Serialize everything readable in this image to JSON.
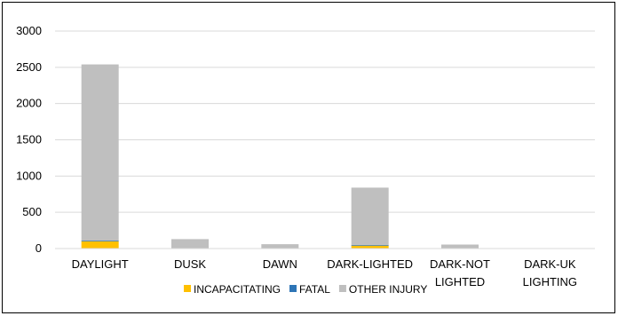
{
  "chart_data": {
    "type": "bar",
    "stacked": true,
    "categories": [
      "DAYLIGHT",
      "DUSK",
      "DAWN",
      "DARK-LIGHTED",
      "DARK-NOT LIGHTED",
      "DARK-UK LIGHTING"
    ],
    "category_label_lines": [
      [
        "DAYLIGHT"
      ],
      [
        "DUSK"
      ],
      [
        "DAWN"
      ],
      [
        "DARK-LIGHTED"
      ],
      [
        "DARK-NOT",
        "LIGHTED"
      ],
      [
        "DARK-UK",
        "LIGHTING"
      ]
    ],
    "series": [
      {
        "name": "INCAPACITATING",
        "color": "#FFC000",
        "values": [
          100,
          5,
          3,
          40,
          3,
          0
        ]
      },
      {
        "name": "FATAL",
        "color": "#2E75B6",
        "values": [
          10,
          1,
          1,
          10,
          2,
          0
        ]
      },
      {
        "name": "OTHER INJURY",
        "color": "#BFBFBF",
        "values": [
          2430,
          124,
          56,
          790,
          50,
          0
        ]
      }
    ],
    "ylim": [
      0,
      3000
    ],
    "yticks": [
      0,
      500,
      1000,
      1500,
      2000,
      2500,
      3000
    ],
    "grid": true,
    "legend_position": "bottom",
    "title": "",
    "xlabel": "",
    "ylabel": ""
  }
}
